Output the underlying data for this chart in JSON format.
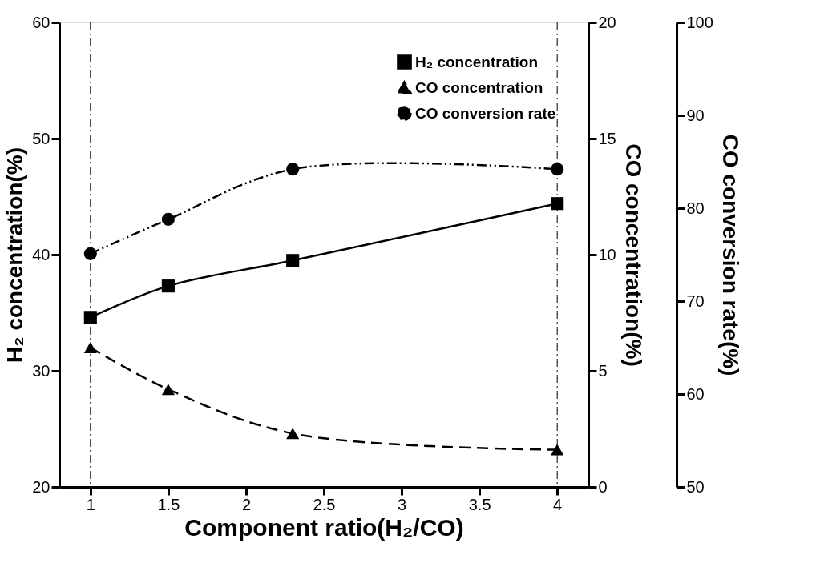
{
  "chart_data": {
    "type": "line",
    "xlabel": "Component ratio(H₂/CO)",
    "ylabel": "H₂ concentration(%)",
    "y2label": "CO concentration(%)",
    "y3label": "CO conversion rate(%)",
    "x": [
      1,
      1.5,
      2.3,
      4
    ],
    "xlim": [
      0.8,
      4.2
    ],
    "xticks": [
      1,
      1.5,
      2,
      2.5,
      3,
      3.5,
      4
    ],
    "ylim": [
      20,
      60
    ],
    "yticks": [
      20,
      30,
      40,
      50,
      60
    ],
    "y2lim": [
      0,
      20
    ],
    "y2ticks": [
      0,
      5,
      10,
      15,
      20
    ],
    "y3lim": [
      50,
      100
    ],
    "y3ticks": [
      50,
      60,
      70,
      80,
      90,
      100
    ],
    "series": [
      {
        "name": "H₂ concentration",
        "color": "#000000",
        "values": [
          34.6,
          37.3,
          39.5,
          44.4
        ],
        "marker": "square",
        "line_style": "solid"
      },
      {
        "name": "CO concentration",
        "color": "#000000",
        "values": [
          6.0,
          4.2,
          2.3,
          1.6
        ],
        "axis": "y2",
        "marker": "triangle",
        "line_style": "dashed"
      },
      {
        "name": "CO conversion rate",
        "color": "#000000",
        "values": [
          75.1,
          78.8,
          84.2,
          84.2
        ],
        "axis": "y3",
        "marker": "circle",
        "line_style": "dashdotdot"
      }
    ],
    "ref_lines": [
      {
        "axis": "x",
        "value": 1,
        "color": "#000000",
        "line_style": "dashdot"
      },
      {
        "axis": "x",
        "value": 4,
        "color": "#000000",
        "line_style": "dashdot"
      }
    ],
    "legend": "top right",
    "grid": false
  }
}
